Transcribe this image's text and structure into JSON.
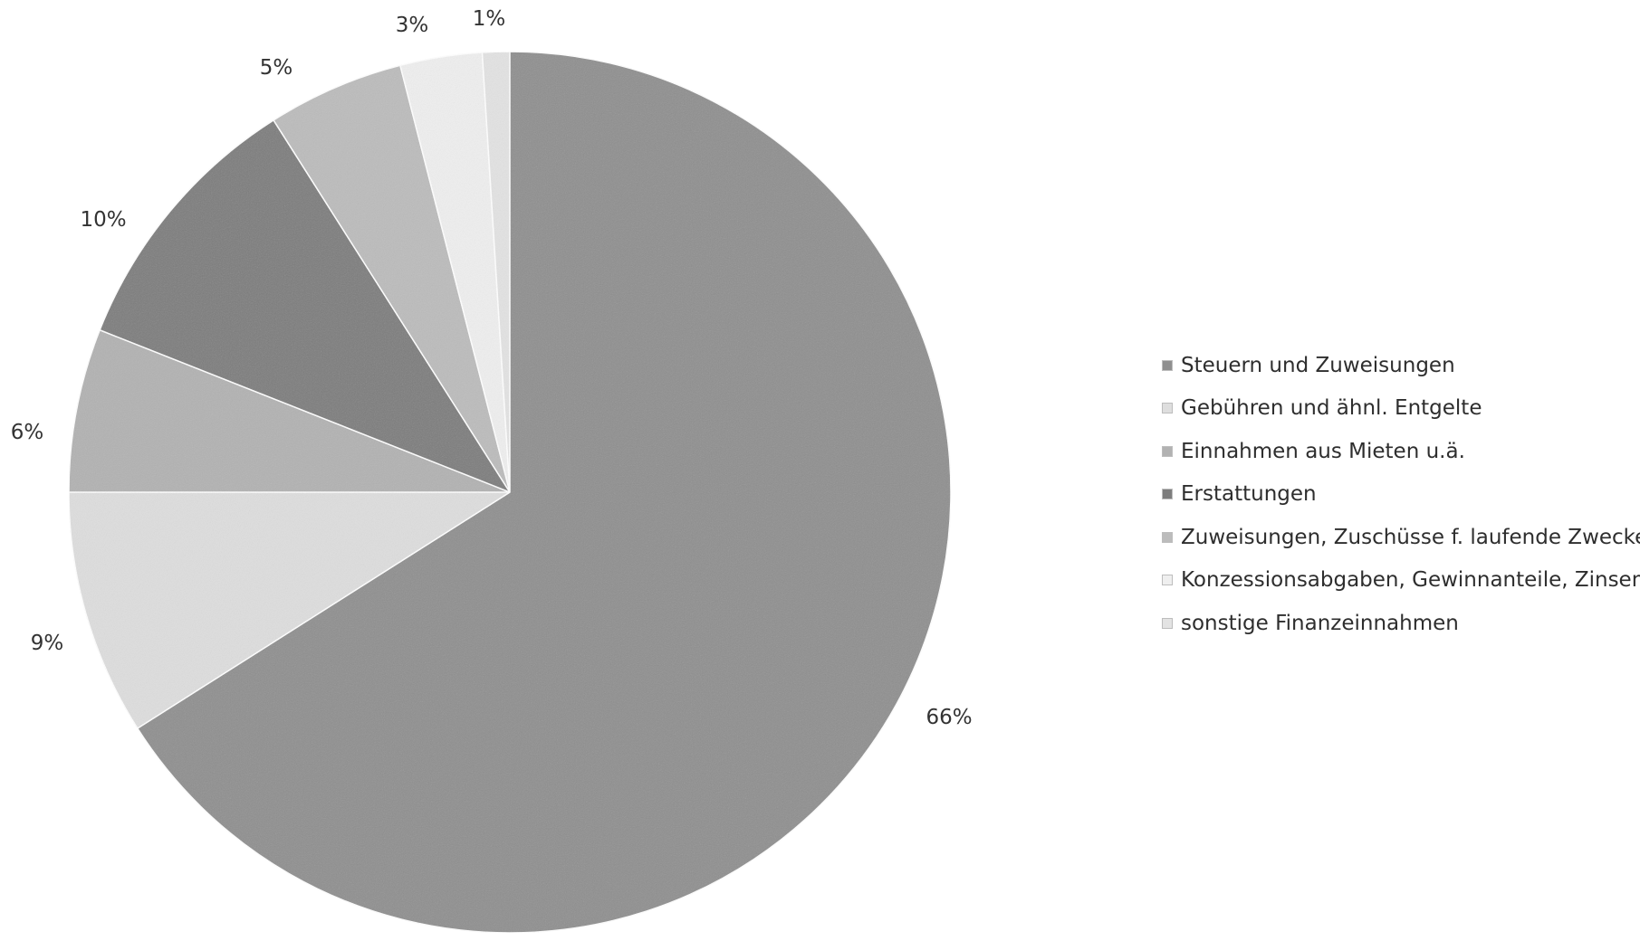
{
  "chart_data": {
    "type": "pie",
    "title": "",
    "start": "12 o'clock, clockwise",
    "slices": [
      {
        "label": "Steuern und Zuweisungen",
        "value": 66,
        "display": "66%",
        "color": "#8f8f8f"
      },
      {
        "label": "Gebühren und ähnl. Entgelte",
        "value": 9,
        "display": "9%",
        "color": "#dedede"
      },
      {
        "label": "Einnahmen aus Mieten u.ä.",
        "value": 6,
        "display": "6%",
        "color": "#b2b2b2"
      },
      {
        "label": "Erstattungen",
        "value": 10,
        "display": "10%",
        "color": "#7d7d7d"
      },
      {
        "label": "Zuweisungen, Zuschüsse f. laufende Zwecke",
        "value": 5,
        "display": "5%",
        "color": "#bcbcbc"
      },
      {
        "label": "Konzessionsabgaben, Gewinnanteile, Zinsen",
        "value": 3,
        "display": "3%",
        "color": "#efefef"
      },
      {
        "label": "sonstige Finanzeinnahmen",
        "value": 1,
        "display": "1%",
        "color": "#e3e3e3"
      }
    ],
    "legend_position": "right"
  }
}
